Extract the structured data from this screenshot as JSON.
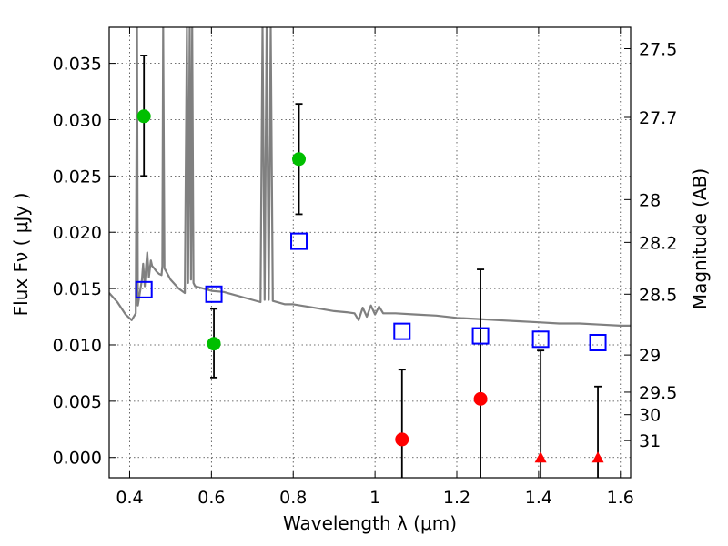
{
  "chart_data": {
    "type": "scatter",
    "xlabel": "Wavelength  λ (μm)",
    "ylabel": "Flux  Fν  ( μJy )",
    "ylabel_right": "Magnitude (AB)",
    "xlim": [
      0.35,
      1.625
    ],
    "ylim": [
      -0.0018,
      0.0382
    ],
    "grid": true,
    "xticks": [
      {
        "value": 0.4,
        "label": "0.4"
      },
      {
        "value": 0.6,
        "label": "0.6"
      },
      {
        "value": 0.8,
        "label": "0.8"
      },
      {
        "value": 1.0,
        "label": "1"
      },
      {
        "value": 1.2,
        "label": "1.2"
      },
      {
        "value": 1.4,
        "label": "1.4"
      },
      {
        "value": 1.6,
        "label": "1.6"
      }
    ],
    "yticks": [
      {
        "value": 0.0,
        "label": "0.000"
      },
      {
        "value": 0.005,
        "label": "0.005"
      },
      {
        "value": 0.01,
        "label": "0.010"
      },
      {
        "value": 0.015,
        "label": "0.015"
      },
      {
        "value": 0.02,
        "label": "0.020"
      },
      {
        "value": 0.025,
        "label": "0.025"
      },
      {
        "value": 0.03,
        "label": "0.030"
      },
      {
        "value": 0.035,
        "label": "0.035"
      }
    ],
    "right_ticks": [
      {
        "label": "27.5",
        "flux": 0.0363
      },
      {
        "label": "27.7",
        "flux": 0.0302
      },
      {
        "label": "28",
        "flux": 0.0229
      },
      {
        "label": "28.2",
        "flux": 0.0191
      },
      {
        "label": "28.5",
        "flux": 0.0145
      },
      {
        "label": "29",
        "flux": 0.0091
      },
      {
        "label": "29.5",
        "flux": 0.0058
      },
      {
        "label": "30",
        "flux": 0.0038
      },
      {
        "label": "31",
        "flux": 0.0015
      }
    ],
    "colors": {
      "detections": "#00bf00",
      "nondetections": "#ff0000",
      "model": "#0000ff",
      "spectrum": "#808080",
      "errorbar": "#000000"
    },
    "series": [
      {
        "marker": "circle",
        "color": "#00bf00",
        "points": [
          {
            "x": 0.435,
            "y": 0.0303,
            "ylo": 0.025,
            "yhi": 0.0357
          },
          {
            "x": 0.606,
            "y": 0.0101,
            "ylo": 0.0071,
            "yhi": 0.0132
          },
          {
            "x": 0.814,
            "y": 0.0265,
            "ylo": 0.0216,
            "yhi": 0.0314
          }
        ]
      },
      {
        "marker": "circle",
        "color": "#ff0000",
        "points": [
          {
            "x": 1.066,
            "y": 0.0016,
            "ylo": -0.0018,
            "yhi": 0.0078
          },
          {
            "x": 1.258,
            "y": 0.0052,
            "ylo": -0.0018,
            "yhi": 0.0167
          }
        ]
      },
      {
        "marker": "triangle",
        "color": "#ff0000",
        "points": [
          {
            "x": 1.405,
            "y": 0.0,
            "ylo": -0.0018,
            "yhi": 0.0095
          },
          {
            "x": 1.545,
            "y": 0.0,
            "ylo": -0.0018,
            "yhi": 0.0063
          }
        ]
      },
      {
        "marker": "open-square",
        "color": "#0000ff",
        "points": [
          {
            "x": 0.435,
            "y": 0.0149
          },
          {
            "x": 0.606,
            "y": 0.0145
          },
          {
            "x": 0.814,
            "y": 0.0192
          },
          {
            "x": 1.066,
            "y": 0.0112
          },
          {
            "x": 1.258,
            "y": 0.0108
          },
          {
            "x": 1.405,
            "y": 0.0105
          },
          {
            "x": 1.545,
            "y": 0.0102
          }
        ]
      }
    ],
    "spectrum": [
      [
        0.35,
        0.0146
      ],
      [
        0.37,
        0.0138
      ],
      [
        0.39,
        0.0127
      ],
      [
        0.405,
        0.0122
      ],
      [
        0.415,
        0.0128
      ],
      [
        0.418,
        0.0382
      ],
      [
        0.42,
        0.0135
      ],
      [
        0.43,
        0.0158
      ],
      [
        0.433,
        0.0172
      ],
      [
        0.437,
        0.0152
      ],
      [
        0.44,
        0.0168
      ],
      [
        0.443,
        0.0182
      ],
      [
        0.447,
        0.016
      ],
      [
        0.452,
        0.0175
      ],
      [
        0.455,
        0.017
      ],
      [
        0.46,
        0.0168
      ],
      [
        0.466,
        0.0165
      ],
      [
        0.472,
        0.0163
      ],
      [
        0.478,
        0.0162
      ],
      [
        0.48,
        0.017
      ],
      [
        0.482,
        0.0382
      ],
      [
        0.485,
        0.0168
      ],
      [
        0.5,
        0.0158
      ],
      [
        0.52,
        0.015
      ],
      [
        0.535,
        0.0146
      ],
      [
        0.54,
        0.0382
      ],
      [
        0.543,
        0.0155
      ],
      [
        0.547,
        0.0382
      ],
      [
        0.55,
        0.0158
      ],
      [
        0.553,
        0.0382
      ],
      [
        0.556,
        0.0155
      ],
      [
        0.56,
        0.0152
      ],
      [
        0.58,
        0.015
      ],
      [
        0.6,
        0.0148
      ],
      [
        0.63,
        0.0147
      ],
      [
        0.65,
        0.0145
      ],
      [
        0.7,
        0.014
      ],
      [
        0.72,
        0.0138
      ],
      [
        0.725,
        0.0382
      ],
      [
        0.73,
        0.014
      ],
      [
        0.735,
        0.0382
      ],
      [
        0.74,
        0.014
      ],
      [
        0.745,
        0.0382
      ],
      [
        0.75,
        0.0139
      ],
      [
        0.78,
        0.0136
      ],
      [
        0.8,
        0.0136
      ],
      [
        0.85,
        0.0133
      ],
      [
        0.9,
        0.013
      ],
      [
        0.93,
        0.0129
      ],
      [
        0.95,
        0.0128
      ],
      [
        0.96,
        0.0122
      ],
      [
        0.97,
        0.0133
      ],
      [
        0.98,
        0.0125
      ],
      [
        0.99,
        0.0135
      ],
      [
        1.0,
        0.0127
      ],
      [
        1.01,
        0.0134
      ],
      [
        1.02,
        0.0128
      ],
      [
        1.05,
        0.0128
      ],
      [
        1.1,
        0.0127
      ],
      [
        1.15,
        0.0126
      ],
      [
        1.2,
        0.0124
      ],
      [
        1.25,
        0.0123
      ],
      [
        1.3,
        0.0122
      ],
      [
        1.35,
        0.0121
      ],
      [
        1.4,
        0.012
      ],
      [
        1.45,
        0.0119
      ],
      [
        1.5,
        0.0119
      ],
      [
        1.55,
        0.0118
      ],
      [
        1.6,
        0.0117
      ],
      [
        1.625,
        0.0117
      ]
    ]
  }
}
